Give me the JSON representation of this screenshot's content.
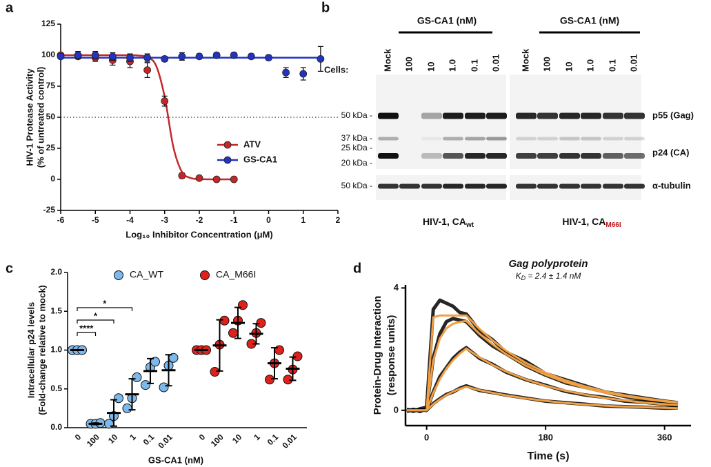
{
  "chart_data": [
    {
      "type": "scatter",
      "panel_label": "a",
      "xlabel": "Log₁₀ Inhibitor Concentration (μM)",
      "ylabel": [
        "HIV-1 Protease Activity",
        "(% of untreated control)"
      ],
      "xlim": [
        -6,
        2
      ],
      "ylim": [
        -25,
        125
      ],
      "xticks": [
        -6,
        -5,
        -4,
        -3,
        -2,
        -1,
        0,
        1,
        2
      ],
      "yticks": [
        -25,
        0,
        25,
        50,
        75,
        100,
        125
      ],
      "reference_line": 50,
      "legend": "lower right",
      "series": [
        {
          "name": "ATV",
          "color": "#c4262b",
          "x": [
            -6,
            -5.5,
            -5,
            -4.5,
            -4,
            -3.5,
            -3,
            -2.5,
            -2,
            -1.5,
            -1
          ],
          "values": [
            100,
            99,
            98,
            96,
            95,
            88,
            63,
            3,
            1,
            0,
            0
          ],
          "errors": [
            1,
            2,
            3,
            4,
            5,
            6,
            4,
            2,
            1,
            1,
            1
          ],
          "fit_x": [
            -6,
            -5,
            -4,
            -3.75,
            -3.5,
            -3.25,
            -3,
            -2.75,
            -2.5,
            -2.25,
            -2,
            -1.5,
            -1
          ],
          "fit_values": [
            100,
            100,
            100,
            99.7,
            98.4,
            91.8,
            66.6,
            26.2,
            5.9,
            1.1,
            0.2,
            0,
            0
          ]
        },
        {
          "name": "GS-CA1",
          "color": "#2233c4",
          "x": [
            -6,
            -5.5,
            -5,
            -4.5,
            -4,
            -3.5,
            -3,
            -2.5,
            -2,
            -1.5,
            -1,
            -0.5,
            0,
            0.5,
            1,
            1.5
          ],
          "values": [
            99,
            100,
            100,
            99,
            98,
            98,
            97,
            99,
            99,
            100,
            100,
            99,
            98,
            86,
            85,
            97
          ],
          "errors": [
            2,
            3,
            3,
            3,
            3,
            3,
            2,
            3,
            2,
            2,
            2,
            2,
            2,
            4,
            5,
            10
          ],
          "fit_x": [
            -6,
            1.6
          ],
          "fit_values": [
            98,
            98
          ]
        }
      ]
    },
    {
      "type": "dot",
      "panel_label": "c",
      "xlabel": "GS-CA1 (nM)",
      "ylabel": [
        "Intracellular p24 levels",
        "(Fold-change relative to mock)"
      ],
      "categories": [
        "0",
        "100",
        "10",
        "1",
        "0.1",
        "0.01",
        "0",
        "100",
        "10",
        "1",
        "0.1",
        "0.01"
      ],
      "ylim": [
        0,
        2
      ],
      "yticks": [
        {
          "value": 0,
          "label": "0.0"
        },
        0.5,
        {
          "value": 1,
          "label": "1.0"
        },
        1.5,
        {
          "value": 2,
          "label": "2.0"
        }
      ],
      "legend": "top",
      "annotations": [
        "****",
        "*",
        "*"
      ],
      "series": [
        {
          "name": "CA_WT",
          "color": "#7cb8ea",
          "values": [
            [
              1.0,
              1.0,
              1.0
            ],
            [
              0.05,
              0.05,
              0.06
            ],
            [
              0.05,
              0.15,
              0.38
            ],
            [
              0.25,
              0.38,
              0.65
            ],
            [
              0.55,
              0.78,
              0.85
            ],
            [
              0.52,
              0.8,
              0.9
            ],
            null,
            null,
            null,
            null,
            null,
            null
          ],
          "means": [
            1.0,
            0.05,
            0.19,
            0.43,
            0.73,
            0.74,
            null,
            null,
            null,
            null,
            null,
            null
          ],
          "sds": [
            0,
            0.01,
            0.17,
            0.2,
            0.16,
            0.2,
            null,
            null,
            null,
            null,
            null,
            null
          ]
        },
        {
          "name": "CA_M66I",
          "color": "#e0201b",
          "values": [
            null,
            null,
            null,
            null,
            null,
            null,
            [
              1.0,
              1.0,
              1.0
            ],
            [
              0.72,
              1.07,
              1.38
            ],
            [
              1.22,
              1.38,
              1.58
            ],
            [
              1.08,
              1.22,
              1.35
            ],
            [
              0.62,
              0.83,
              1.0
            ],
            [
              0.62,
              0.75,
              0.92
            ]
          ],
          "means": [
            null,
            null,
            null,
            null,
            null,
            null,
            1.0,
            1.06,
            1.35,
            1.21,
            0.83,
            0.76
          ],
          "sds": [
            null,
            null,
            null,
            null,
            null,
            null,
            0,
            0.33,
            0.2,
            0.13,
            0.2,
            0.15
          ]
        }
      ]
    },
    {
      "type": "line",
      "panel_label": "d",
      "title": "Gag polyprotein",
      "subtitle": {
        "symbol": "K",
        "sub": "D",
        "text": " = 2.4 ± 1.4 nM"
      },
      "xlabel": "Time (s)",
      "ylabel": [
        "Protein-Drug Interaction",
        "(response units)"
      ],
      "xlim": [
        -32,
        400
      ],
      "ylim": [
        -0.5,
        4.1
      ],
      "xticks": [
        0,
        180,
        360
      ],
      "yticks": [
        0,
        4
      ],
      "x": [
        -30,
        -20,
        -10,
        0,
        10,
        20,
        30,
        40,
        50,
        60,
        80,
        100,
        120,
        150,
        180,
        210,
        240,
        270,
        300,
        330,
        360,
        380
      ],
      "traces": [
        {
          "color": "#000000",
          "values": [
            0.02,
            -0.03,
            0.05,
            0.1,
            3.3,
            3.6,
            3.5,
            3.4,
            3.2,
            3.15,
            2.6,
            2.3,
            1.9,
            1.6,
            1.2,
            1.0,
            0.8,
            0.6,
            0.5,
            0.4,
            0.3,
            0.25
          ]
        },
        {
          "color": "#000000",
          "values": [
            -0.02,
            0.03,
            -0.04,
            0.05,
            1.7,
            2.5,
            2.9,
            3.0,
            2.95,
            2.9,
            2.45,
            2.1,
            1.85,
            1.45,
            1.15,
            0.9,
            0.75,
            0.6,
            0.45,
            0.35,
            0.3,
            0.22
          ]
        },
        {
          "color": "#000000",
          "values": [
            0.03,
            -0.02,
            0.02,
            0.0,
            0.6,
            1.1,
            1.4,
            1.7,
            1.9,
            2.05,
            1.7,
            1.5,
            1.25,
            1.0,
            0.82,
            0.62,
            0.5,
            0.42,
            0.3,
            0.26,
            0.2,
            0.15
          ]
        },
        {
          "color": "#000000",
          "values": [
            -0.03,
            0.02,
            0.01,
            0.0,
            0.22,
            0.38,
            0.52,
            0.6,
            0.72,
            0.8,
            0.65,
            0.58,
            0.5,
            0.4,
            0.3,
            0.25,
            0.2,
            0.14,
            0.12,
            0.1,
            0.07,
            0.08
          ]
        }
      ],
      "fits": [
        {
          "color": "#f0a044",
          "values": [
            0,
            0,
            0,
            0,
            3.04,
            3.1,
            3.1,
            3.1,
            3.1,
            3.1,
            2.66,
            2.28,
            1.95,
            1.55,
            1.23,
            0.98,
            0.78,
            0.62,
            0.49,
            0.39,
            0.31,
            0.26
          ]
        },
        {
          "color": "#f0a044",
          "values": [
            0,
            0,
            0,
            0,
            1.63,
            2.35,
            2.68,
            2.83,
            2.89,
            2.92,
            2.5,
            2.15,
            1.84,
            1.46,
            1.16,
            0.92,
            0.73,
            0.58,
            0.46,
            0.37,
            0.29,
            0.25
          ]
        },
        {
          "color": "#f0a044",
          "values": [
            0,
            0,
            0,
            0,
            0.57,
            1.02,
            1.37,
            1.64,
            1.85,
            2.02,
            1.73,
            1.48,
            1.27,
            1.01,
            0.8,
            0.64,
            0.51,
            0.4,
            0.32,
            0.25,
            0.2,
            0.17
          ]
        },
        {
          "color": "#f0a044",
          "values": [
            0,
            0,
            0,
            0,
            0.2,
            0.36,
            0.5,
            0.61,
            0.7,
            0.77,
            0.66,
            0.57,
            0.49,
            0.39,
            0.31,
            0.24,
            0.19,
            0.15,
            0.12,
            0.1,
            0.08,
            0.07
          ]
        }
      ]
    }
  ],
  "blot": {
    "panel_label": "b",
    "treatment_headers": [
      "GS-CA1 (nM)",
      "GS-CA1 (nM)"
    ],
    "lanes": [
      [
        "Mock",
        "100",
        "10",
        "1.0",
        "0.1",
        "0.01"
      ],
      [
        "Mock",
        "100",
        "10",
        "1.0",
        "0.1",
        "0.01"
      ]
    ],
    "cells_label": "Cells:",
    "markers": [
      "50 kDa -",
      "37 kDa -",
      "25 kDa -",
      "20 kDa -",
      "50 kDa -"
    ],
    "bands": [
      "p55 (Gag)",
      "p24 (CA)",
      "α-tubulin"
    ],
    "blots": [
      {
        "label": "HIV-1, CA",
        "subscript": "wt"
      },
      {
        "label": "HIV-1, CA",
        "subscript": "M66I"
      }
    ]
  }
}
